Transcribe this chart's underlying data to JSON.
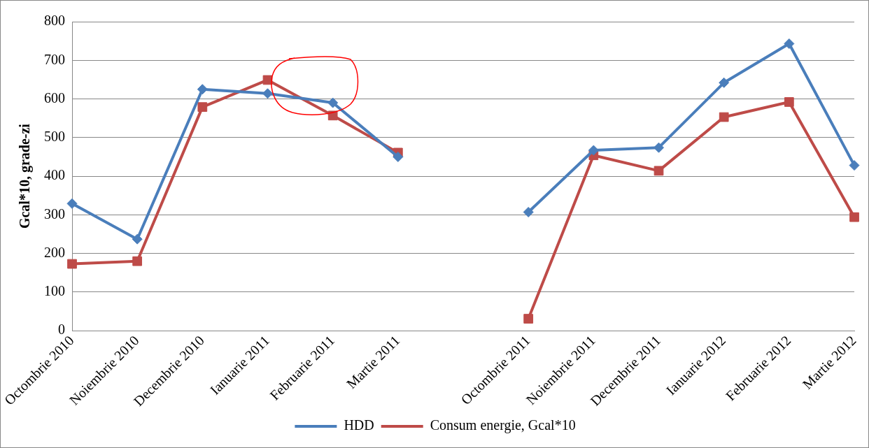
{
  "chart_data": {
    "type": "line",
    "ylabel": "Gcal*10, grade-zi",
    "categories": [
      "Octombrie 2010",
      "Noiembrie 2010",
      "Decembrie 2010",
      "Ianuarie 2011",
      "Februarie 2011",
      "Martie 2011",
      null,
      "Octombrie 2011",
      "Noiembrie 2011",
      "Decembrie 2011",
      "Ianuarie 2012",
      "Februarie 2012",
      "Martie 2012"
    ],
    "series": [
      {
        "name": "HDD",
        "color": "#4a7ebb",
        "marker": "diamond",
        "values": [
          329,
          237,
          625,
          614,
          590,
          450,
          null,
          307,
          467,
          474,
          642,
          743,
          428
        ]
      },
      {
        "name": "Consum energie, Gcal*10",
        "color": "#be4b48",
        "marker": "square",
        "values": [
          173,
          180,
          579,
          649,
          557,
          461,
          null,
          31,
          454,
          414,
          553,
          592,
          294
        ]
      }
    ],
    "ylim": [
      0,
      800
    ],
    "yticks": [
      0,
      100,
      200,
      300,
      400,
      500,
      600,
      700,
      800
    ],
    "grid": "y",
    "legend": "bottom",
    "line_style": "solid"
  }
}
